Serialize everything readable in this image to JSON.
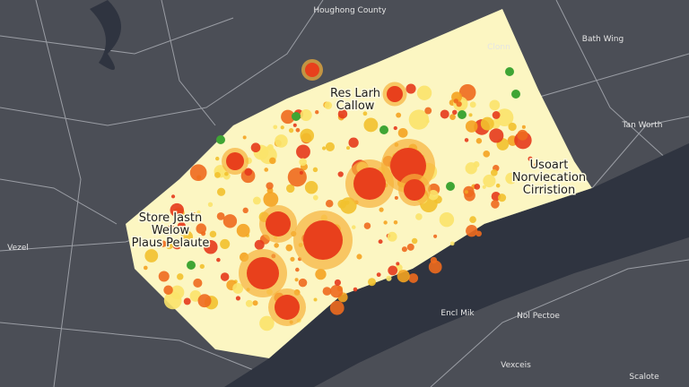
{
  "map": {
    "labels": [
      {
        "lines": [
          "Houghong County"
        ]
      },
      {
        "lines": [
          "Bath Wing"
        ]
      },
      {
        "lines": [
          "Tan Worth"
        ]
      },
      {
        "lines": [
          "Clonn"
        ]
      },
      {
        "lines": [
          "Res Larh",
          "Callow"
        ]
      },
      {
        "lines": [
          "Usoart",
          "Norviecation",
          "Cirristion"
        ]
      },
      {
        "lines": [
          "Store Jastn",
          "Welow",
          "Plaus Pelaute"
        ]
      },
      {
        "lines": [
          "Vezel"
        ]
      },
      {
        "lines": [
          "Encl Mik"
        ]
      },
      {
        "lines": [
          "Nol Pectoe"
        ]
      },
      {
        "lines": [
          "Vexceis"
        ]
      },
      {
        "lines": [
          "Scalote"
        ]
      }
    ]
  }
}
